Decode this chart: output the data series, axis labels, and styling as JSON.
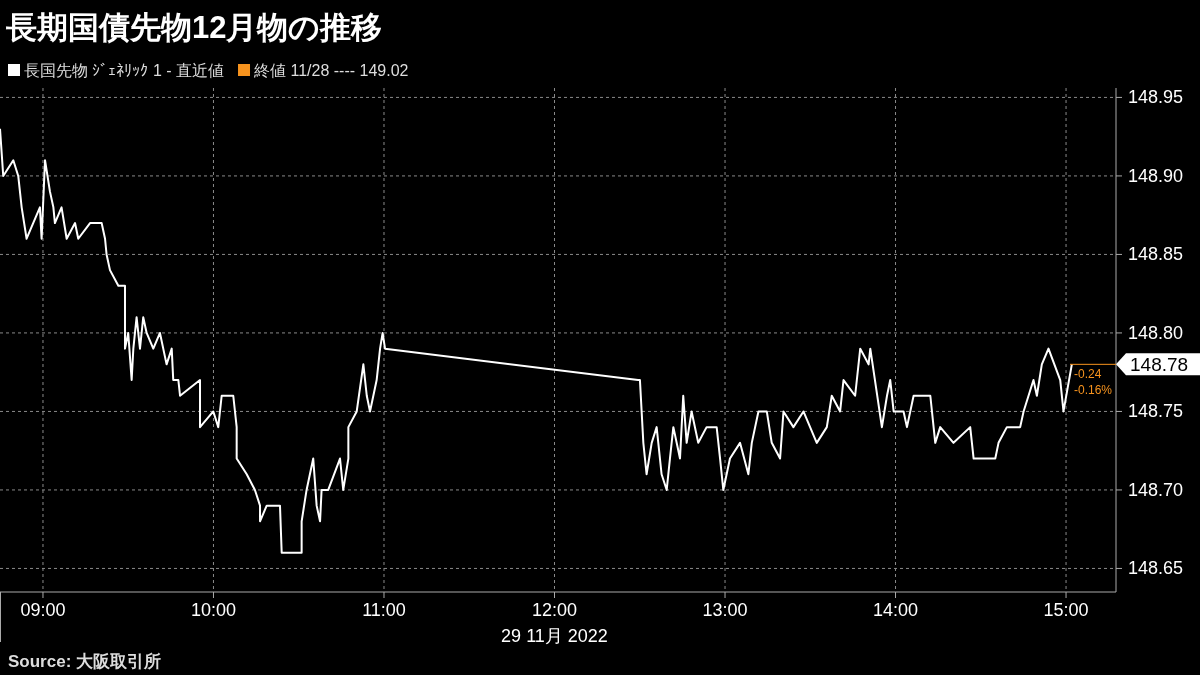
{
  "chart_data": {
    "type": "line",
    "title": "長期国債先物12月物の推移",
    "xlabel": "29 11月 2022",
    "xlim": [
      8.748,
      15.293
    ],
    "ylim": [
      148.635,
      148.956
    ],
    "xticks": [
      {
        "value": 9,
        "label": "09:00"
      },
      {
        "value": 10,
        "label": "10:00"
      },
      {
        "value": 11,
        "label": "11:00"
      },
      {
        "value": 12,
        "label": "12:00"
      },
      {
        "value": 13,
        "label": "13:00"
      },
      {
        "value": 14,
        "label": "14:00"
      },
      {
        "value": 15,
        "label": "15:00"
      }
    ],
    "yticks": [
      {
        "value": 148.65,
        "label": "148.65"
      },
      {
        "value": 148.7,
        "label": "148.70"
      },
      {
        "value": 148.75,
        "label": "148.75"
      },
      {
        "value": 148.8,
        "label": "148.80"
      },
      {
        "value": 148.85,
        "label": "148.85"
      },
      {
        "value": 148.9,
        "label": "148.90"
      },
      {
        "value": 148.95,
        "label": "148.95"
      }
    ],
    "grid": true,
    "legend": "top left",
    "series": [
      {
        "name": "長国先物 ｼﾞｪﾈﾘｯｸ 1 - 直近値",
        "color": "#ffffff",
        "x": [
          8.748,
          8.767,
          8.826,
          8.855,
          8.875,
          8.904,
          8.982,
          8.992,
          9.012,
          9.041,
          9.061,
          9.07,
          9.109,
          9.139,
          9.188,
          9.207,
          9.276,
          9.344,
          9.364,
          9.373,
          9.393,
          9.442,
          9.481,
          9.481,
          9.5,
          9.52,
          9.53,
          9.549,
          9.569,
          9.588,
          9.608,
          9.647,
          9.686,
          9.725,
          9.755,
          9.764,
          9.794,
          9.804,
          9.921,
          9.921,
          9.999,
          10.028,
          10.048,
          10.116,
          10.136,
          10.136,
          10.195,
          10.243,
          10.273,
          10.273,
          10.312,
          10.39,
          10.4,
          10.517,
          10.517,
          10.546,
          10.585,
          10.605,
          10.625,
          10.634,
          10.673,
          10.742,
          10.761,
          10.791,
          10.791,
          10.84,
          10.879,
          10.899,
          10.918,
          10.957,
          10.977,
          10.992,
          11.006,
          12.49,
          12.501,
          12.521,
          12.54,
          12.57,
          12.599,
          12.628,
          12.658,
          12.677,
          12.697,
          12.736,
          12.755,
          12.775,
          12.804,
          12.843,
          12.892,
          12.951,
          12.971,
          12.99,
          13.029,
          13.088,
          13.137,
          13.157,
          13.196,
          13.245,
          13.274,
          13.323,
          13.343,
          13.401,
          13.46,
          13.538,
          13.597,
          13.626,
          13.675,
          13.695,
          13.763,
          13.793,
          13.842,
          13.852,
          13.92,
          13.95,
          13.969,
          13.989,
          14.047,
          14.067,
          14.106,
          14.204,
          14.233,
          14.262,
          14.34,
          14.438,
          14.458,
          14.585,
          14.604,
          14.653,
          14.731,
          14.751,
          14.809,
          14.829,
          14.858,
          14.897,
          14.966,
          14.985,
          15.034
        ],
        "values": [
          148.93,
          148.9,
          148.91,
          148.9,
          148.88,
          148.86,
          148.88,
          148.86,
          148.91,
          148.89,
          148.88,
          148.87,
          148.88,
          148.86,
          148.87,
          148.86,
          148.87,
          148.87,
          148.86,
          148.85,
          148.84,
          148.83,
          148.83,
          148.79,
          148.8,
          148.77,
          148.79,
          148.81,
          148.79,
          148.81,
          148.8,
          148.79,
          148.8,
          148.78,
          148.79,
          148.77,
          148.77,
          148.76,
          148.77,
          148.74,
          148.75,
          148.74,
          148.76,
          148.76,
          148.74,
          148.72,
          148.71,
          148.7,
          148.69,
          148.68,
          148.69,
          148.69,
          148.66,
          148.66,
          148.68,
          148.7,
          148.72,
          148.69,
          148.68,
          148.7,
          148.7,
          148.72,
          148.7,
          148.72,
          148.74,
          148.75,
          148.78,
          148.76,
          148.75,
          148.77,
          148.79,
          148.8,
          148.79,
          148.77,
          148.77,
          148.73,
          148.71,
          148.73,
          148.74,
          148.71,
          148.7,
          148.72,
          148.74,
          148.72,
          148.76,
          148.73,
          148.75,
          148.73,
          148.74,
          148.74,
          148.72,
          148.7,
          148.72,
          148.73,
          148.71,
          148.73,
          148.75,
          148.75,
          148.73,
          148.72,
          148.75,
          148.74,
          148.75,
          148.73,
          148.74,
          148.76,
          148.75,
          148.77,
          148.76,
          148.79,
          148.78,
          148.79,
          148.74,
          148.76,
          148.77,
          148.75,
          148.75,
          148.74,
          148.76,
          148.76,
          148.73,
          148.74,
          148.73,
          148.74,
          148.72,
          148.72,
          148.73,
          148.74,
          148.74,
          148.75,
          148.77,
          148.76,
          148.78,
          148.79,
          148.77,
          148.75,
          148.78
        ]
      }
    ],
    "ref_lines": [
      {
        "axis": "y",
        "value": 148.78,
        "label": "148.78",
        "color": "#f7931e"
      }
    ],
    "annotations": [
      "終値 11/28 ---- 149.02",
      "-0.24",
      "-0.16%",
      "Source: 大阪取引所"
    ]
  }
}
